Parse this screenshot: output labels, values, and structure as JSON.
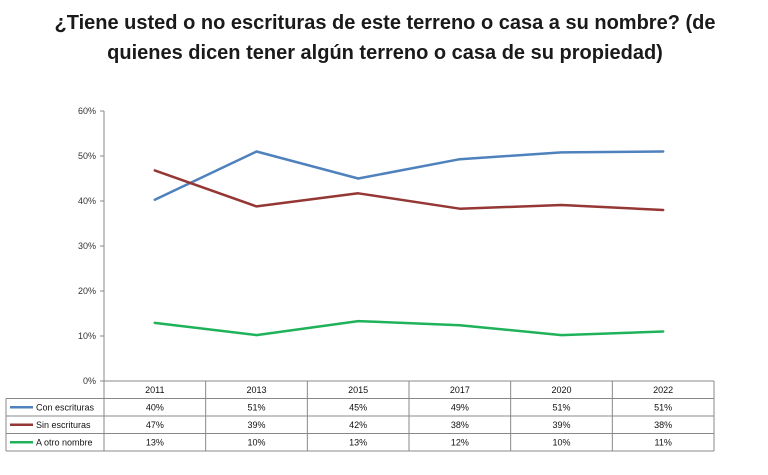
{
  "chart_data": {
    "type": "line",
    "title": "¿Tiene usted o no escrituras de este terreno o casa a su nombre? (de quienes dicen tener algún terreno o casa de su propiedad)",
    "categories": [
      "2011",
      "2013",
      "2015",
      "2017",
      "2020",
      "2022"
    ],
    "ylim": [
      0,
      60
    ],
    "yticks": [
      "0%",
      "10%",
      "20%",
      "30%",
      "40%",
      "50%",
      "60%"
    ],
    "grid": false,
    "legend": "data-table",
    "series": [
      {
        "name": "Con escrituras",
        "color": "#4f81bd",
        "values": [
          40.3,
          51.0,
          45.0,
          49.3,
          50.8,
          51.0
        ],
        "labels": [
          "40%",
          "51%",
          "45%",
          "49%",
          "51%",
          "51%"
        ]
      },
      {
        "name": "Sin escrituras",
        "color": "#953735",
        "values": [
          46.8,
          38.8,
          41.7,
          38.3,
          39.1,
          38.0
        ],
        "labels": [
          "47%",
          "39%",
          "42%",
          "38%",
          "39%",
          "38%"
        ]
      },
      {
        "name": "A otro nombre",
        "color": "#1fb25a",
        "values": [
          12.9,
          10.2,
          13.3,
          12.4,
          10.2,
          11.0
        ],
        "labels": [
          "13%",
          "10%",
          "13%",
          "12%",
          "10%",
          "11%"
        ]
      }
    ]
  }
}
